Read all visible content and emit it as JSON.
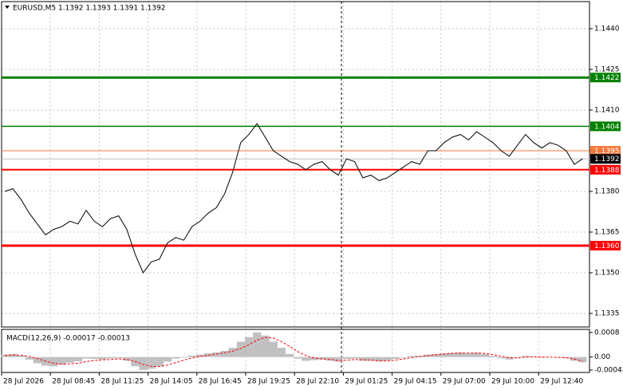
{
  "chart_data": [
    {
      "type": "line",
      "title": "EURUSD,M5  1.1392 1.1393 1.1391 1.1392",
      "color": "#000000",
      "grid": true,
      "ylim": [
        1.133,
        1.145
      ],
      "yticks": [
        1.1335,
        {
          "value": 1.135,
          "label": "1.1350"
        },
        1.1365,
        {
          "value": 1.138,
          "label": "1.1380"
        },
        1.1395,
        {
          "value": 1.141,
          "label": "1.1410"
        },
        1.1425,
        {
          "value": 1.144,
          "label": "1.1440"
        }
      ],
      "categories": [
        "28 Jul 2026",
        null,
        null,
        null,
        null,
        null,
        "28 Jul 08:45",
        null,
        null,
        null,
        null,
        null,
        "28 Jul 11:25",
        null,
        null,
        null,
        null,
        null,
        "28 Jul 14:05",
        null,
        null,
        null,
        null,
        null,
        "28 Jul 16:45",
        null,
        null,
        null,
        null,
        null,
        "28 Jul 19:25",
        null,
        null,
        null,
        null,
        null,
        "28 Jul 22:10",
        null,
        null,
        null,
        null,
        null,
        "29 Jul 01:25",
        null,
        null,
        null,
        null,
        null,
        "29 Jul 04:15",
        null,
        null,
        null,
        null,
        null,
        "29 Jul 07:00",
        null,
        null,
        null,
        null,
        null,
        "29 Jul 10:00",
        null,
        null,
        null,
        null,
        null,
        "29 Jul 12:40",
        null,
        null,
        null,
        null,
        null
      ],
      "values": [
        1.138,
        1.1381,
        1.1377,
        1.1372,
        1.1368,
        1.1364,
        1.1366,
        1.1367,
        1.1369,
        1.1368,
        1.1373,
        1.1369,
        1.1367,
        1.137,
        1.1371,
        1.1366,
        1.1357,
        1.135,
        1.1354,
        1.1355,
        1.1361,
        1.1363,
        1.1362,
        1.1367,
        1.1369,
        1.1372,
        1.1374,
        1.1379,
        1.1387,
        1.1398,
        1.1401,
        1.1405,
        1.14,
        1.1395,
        1.1393,
        1.1391,
        1.139,
        1.1388,
        1.139,
        1.1391,
        1.1388,
        1.1386,
        1.1392,
        1.1391,
        1.1385,
        1.1386,
        1.1384,
        1.1385,
        1.1387,
        1.1389,
        1.1391,
        1.139,
        1.1395,
        1.1395,
        1.1398,
        1.14,
        1.1401,
        1.1399,
        1.1402,
        1.14,
        1.1398,
        1.1395,
        1.1393,
        1.1397,
        1.1401,
        1.1398,
        1.1396,
        1.1398,
        1.1397,
        1.1395,
        1.139,
        1.1392
      ],
      "levels": [
        {
          "value": 1.1422,
          "color": "#008000"
        },
        {
          "value": 1.1404,
          "color": "#008000"
        },
        {
          "value": 1.1395,
          "color": "#f47a3c"
        },
        {
          "value": 1.1392,
          "color": "#000000"
        },
        {
          "value": 1.1388,
          "color": "#ff0000"
        },
        {
          "value": 1.136,
          "label": "1.1360",
          "color": "#ff0000"
        }
      ]
    },
    {
      "type": "macd",
      "title": "MACD(12,26,9) -0.00017 -0.00013",
      "color": "#c0c0c0",
      "ylim": [
        -0.0005,
        0.0009
      ],
      "yticks": [
        {
          "value": -0.00042,
          "label": "-0.00042"
        },
        {
          "value": 0,
          "label": "0.00"
        },
        0.0008
      ],
      "values": [
        8e-05,
        0.0001,
        5e-05,
        -8e-05,
        -0.0002,
        -0.00028,
        -0.0003,
        -0.00025,
        -0.00018,
        -0.00014,
        -5e-05,
        -6e-05,
        -8e-05,
        -5e-05,
        -4e-05,
        -0.00012,
        -0.0003,
        -0.00042,
        -0.00038,
        -0.0003,
        -0.00015,
        -5e-05,
        -2e-05,
        5e-05,
        8e-05,
        0.00012,
        0.00015,
        0.0002,
        0.0003,
        0.0005,
        0.00065,
        0.0008,
        0.0007,
        0.0005,
        0.0003,
        0.0001,
        -5e-05,
        -0.00012,
        -0.0001,
        -8e-05,
        -0.00012,
        -0.00015,
        -6e-05,
        -5e-05,
        -0.00012,
        -0.00012,
        -0.00014,
        -0.00012,
        -6e-05,
        -2e-05,
        4e-05,
        4e-05,
        8e-05,
        0.0001,
        0.00012,
        0.00014,
        0.00015,
        0.00012,
        0.00014,
        0.0001,
        4e-05,
        -4e-05,
        -8e-05,
        -2e-05,
        4e-05,
        2e-05,
        -2e-05,
        0,
        -2e-05,
        -4e-05,
        -0.00012,
        -0.00017
      ],
      "signal": {
        "color": "#ff0000",
        "values": [
          5e-05,
          7e-05,
          6e-05,
          2e-05,
          -5e-05,
          -0.00013,
          -0.0002,
          -0.00023,
          -0.00022,
          -0.0002,
          -0.00015,
          -0.00011,
          -9e-05,
          -8e-05,
          -6e-05,
          -8e-05,
          -0.00014,
          -0.00024,
          -0.0003,
          -0.00031,
          -0.00026,
          -0.00018,
          -0.0001,
          -3e-05,
          2e-05,
          6e-05,
          0.0001,
          0.00014,
          0.00019,
          0.00028,
          0.0004,
          0.00055,
          0.00064,
          0.00062,
          0.0005,
          0.00035,
          0.00018,
          5e-05,
          -3e-05,
          -6e-05,
          -8e-05,
          -0.00011,
          -0.0001,
          -8e-05,
          -9e-05,
          -0.0001,
          -0.00012,
          -0.00012,
          -0.0001,
          -6e-05,
          -2e-05,
          2e-05,
          5e-05,
          8e-05,
          0.0001,
          0.00012,
          0.00013,
          0.00013,
          0.00013,
          0.00012,
          8e-05,
          3e-05,
          -2e-05,
          -3e-05,
          0,
          1e-05,
          0,
          0,
          -1e-05,
          -2e-05,
          -7e-05,
          -0.00013
        ]
      }
    }
  ]
}
